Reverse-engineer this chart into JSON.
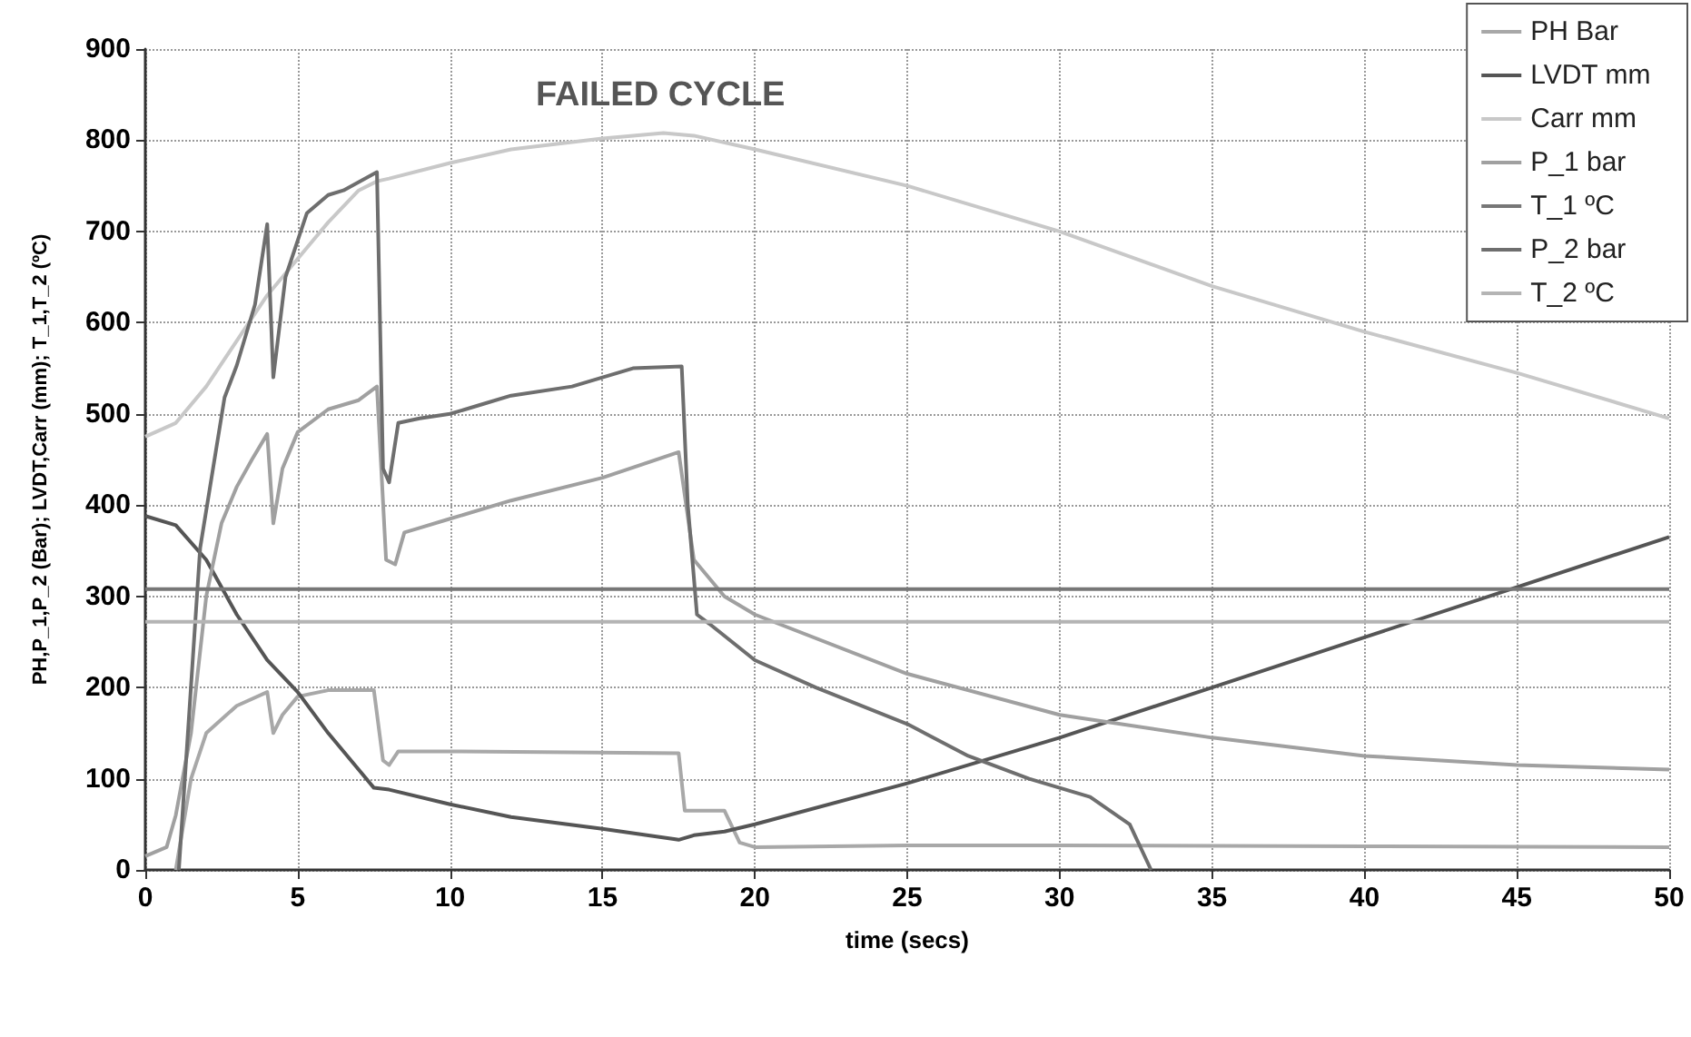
{
  "chart_data": {
    "type": "line",
    "title": "FAILED CYCLE",
    "xlabel": "time (secs)",
    "ylabel": "PH,P_1,P_2 (Bar); LVDT,Carr (mm); T_1,T_2 (ºC)",
    "xlim": [
      0,
      50
    ],
    "xticks": [
      0,
      5,
      10,
      15,
      20,
      25,
      30,
      35,
      40,
      45,
      50
    ],
    "ylim": [
      0,
      900
    ],
    "yticks": [
      0,
      100,
      200,
      300,
      400,
      500,
      600,
      700,
      800,
      900
    ],
    "grid": true,
    "legend": "top right",
    "marker": "none",
    "line_style": "solid",
    "series": [
      {
        "name": "PH Bar",
        "color": "#a8a8a8",
        "x": [
          1.0,
          1.5,
          2,
          3,
          4,
          4.2,
          4.5,
          5,
          6,
          7.5,
          7.8,
          8,
          8.3,
          10,
          17.5,
          17.7,
          19,
          19.5,
          20,
          25,
          30,
          40,
          50
        ],
        "values": [
          0,
          100,
          150,
          180,
          195,
          150,
          170,
          190,
          197,
          197,
          120,
          115,
          130,
          130,
          128,
          65,
          65,
          30,
          25,
          27,
          27,
          26,
          25
        ]
      },
      {
        "name": "LVDT mm",
        "color": "#555555",
        "x": [
          0,
          1,
          2,
          3,
          4,
          5,
          6,
          7,
          7.5,
          8,
          10,
          12,
          15,
          17.5,
          18,
          19,
          20,
          25,
          30,
          35,
          40,
          45,
          50
        ],
        "values": [
          388,
          378,
          340,
          280,
          230,
          195,
          150,
          110,
          90,
          88,
          72,
          58,
          45,
          33,
          38,
          42,
          50,
          95,
          145,
          200,
          255,
          310,
          365
        ]
      },
      {
        "name": "Carr mm",
        "color": "#c8c8c8",
        "x": [
          0,
          1,
          2,
          3,
          4,
          5,
          6,
          7,
          7.6,
          8,
          10,
          12,
          15,
          17,
          18,
          20,
          25,
          30,
          35,
          40,
          45,
          50
        ],
        "values": [
          475,
          490,
          530,
          580,
          630,
          670,
          710,
          745,
          755,
          758,
          775,
          790,
          802,
          808,
          805,
          790,
          750,
          700,
          640,
          590,
          545,
          495
        ]
      },
      {
        "name": "P_1 bar",
        "color": "#a0a0a0",
        "x": [
          0,
          0.7,
          1,
          1.5,
          2,
          2.5,
          3,
          3.5,
          4,
          4.2,
          4.5,
          5,
          6,
          7,
          7.6,
          7.9,
          8.2,
          8.5,
          9,
          10,
          12,
          15,
          17.5,
          18,
          19,
          20,
          25,
          30,
          35,
          40,
          45,
          50
        ],
        "values": [
          15,
          25,
          60,
          150,
          300,
          380,
          420,
          450,
          478,
          380,
          440,
          480,
          505,
          515,
          530,
          340,
          335,
          370,
          375,
          385,
          405,
          430,
          458,
          340,
          300,
          280,
          215,
          170,
          145,
          125,
          115,
          110
        ]
      },
      {
        "name": "T_1 ºC",
        "color": "#777777",
        "x": [
          0,
          50
        ],
        "values": [
          308,
          308
        ]
      },
      {
        "name": "P_2 bar",
        "color": "#6e6e6e",
        "x": [
          1.1,
          1.8,
          2.6,
          3.0,
          3.6,
          4.0,
          4.2,
          4.6,
          5.3,
          6,
          6.5,
          7.6,
          7.8,
          8.0,
          8.3,
          9,
          10,
          11,
          12,
          14,
          15,
          16,
          17.6,
          17.8,
          18.1,
          18.5,
          20,
          22,
          25,
          27,
          29,
          31,
          32.3,
          33
        ],
        "values": [
          0,
          353,
          518,
          553,
          620,
          708,
          540,
          650,
          720,
          740,
          745,
          765,
          440,
          425,
          490,
          495,
          500,
          510,
          520,
          530,
          540,
          550,
          552,
          400,
          280,
          270,
          230,
          200,
          160,
          125,
          100,
          80,
          50,
          0
        ]
      },
      {
        "name": "T_2 ºC",
        "color": "#b4b4b4",
        "x": [
          0,
          50
        ],
        "values": [
          272,
          272
        ]
      }
    ]
  }
}
